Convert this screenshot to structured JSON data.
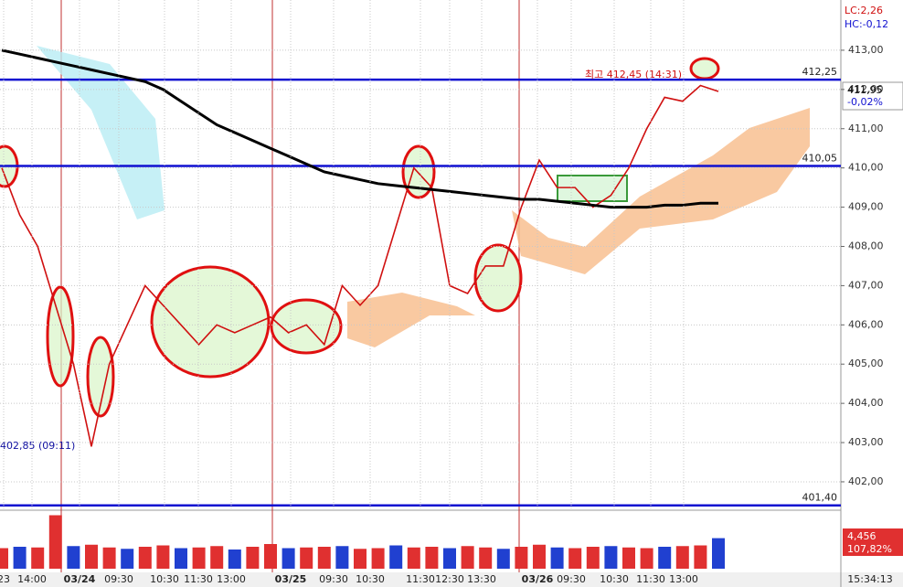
{
  "chart_data": [
    {
      "type": "line",
      "series": [
        {
          "name": "Price",
          "color": "#d01010",
          "values": [
            410.0,
            408.8,
            408.0,
            406.5,
            405.0,
            402.9,
            405.0,
            406.0,
            407.0,
            406.5,
            406.0,
            405.5,
            406.0,
            405.8,
            406.0,
            406.2,
            405.8,
            406.0,
            405.5,
            407.0,
            406.5,
            407.0,
            408.5,
            410.0,
            409.5,
            407.0,
            406.8,
            407.5,
            407.5,
            409.0,
            410.2,
            409.5,
            409.5,
            409.0,
            409.3,
            410.0,
            411.0,
            411.8,
            411.7,
            412.1,
            411.95
          ]
        },
        {
          "name": "MA",
          "color": "#000000",
          "values": [
            413.0,
            412.9,
            412.8,
            412.7,
            412.6,
            412.5,
            412.4,
            412.3,
            412.2,
            412.0,
            411.7,
            411.4,
            411.1,
            410.9,
            410.7,
            410.5,
            410.3,
            410.1,
            409.9,
            409.8,
            409.7,
            409.6,
            409.55,
            409.5,
            409.45,
            409.4,
            409.35,
            409.3,
            409.25,
            409.2,
            409.2,
            409.15,
            409.1,
            409.05,
            409.0,
            409.0,
            409.0,
            409.05,
            409.05,
            409.1,
            409.1
          ]
        }
      ],
      "ylim": [
        401.3,
        414.28
      ],
      "yticks": [
        {
          "value": 413,
          "label": "413,00"
        },
        {
          "value": 412,
          "label": "412,00"
        },
        {
          "value": 411,
          "label": "411,00"
        },
        {
          "value": 410,
          "label": "410,00"
        },
        {
          "value": 409,
          "label": "409,00"
        },
        {
          "value": 408,
          "label": "408,00"
        },
        {
          "value": 407,
          "label": "407,00"
        },
        {
          "value": 406,
          "label": "406,00"
        },
        {
          "value": 405,
          "label": "405,00"
        },
        {
          "value": 404,
          "label": "404,00"
        },
        {
          "value": 403,
          "label": "403,00"
        },
        {
          "value": 402,
          "label": "402,00"
        }
      ],
      "hlines": [
        {
          "value": 412.25,
          "label": "412,25"
        },
        {
          "value": 410.05,
          "label": "410,05"
        },
        {
          "value": 401.4,
          "label": "401,40"
        }
      ],
      "annotations": [
        "최고 412,45 (14:31)",
        "402,85 (09:11)"
      ],
      "top_labels": [
        "LC:2,26",
        "HC:-0,12"
      ],
      "last_price_label": "411,95",
      "change_label": "-0,02%",
      "time_labels": [
        "23",
        "14:00",
        "03/24",
        "09:30",
        "10:30",
        "11:30",
        "13:00",
        "03/25",
        "09:30",
        "10:30",
        "11:30",
        "12:30",
        "13:30",
        "03/26",
        "09:30",
        "10:30",
        "11:30",
        "13:00",
        "15:34:13"
      ],
      "grid": true
    },
    {
      "type": "bar",
      "values": [
        3000,
        3200,
        3100,
        7800,
        3300,
        3500,
        3100,
        2900,
        3200,
        3400,
        3000,
        3100,
        3300,
        2800,
        3200,
        3600,
        3000,
        3100,
        3200,
        3300,
        2900,
        3000,
        3400,
        3100,
        3200,
        3000,
        3300,
        3100,
        2900,
        3200,
        3500,
        3100,
        3000,
        3200,
        3300,
        3100,
        3000,
        3200,
        3300,
        3400,
        4456
      ],
      "ylim": [
        0,
        8000
      ],
      "value_label": "4,456",
      "ratio_label": "107,82%"
    }
  ]
}
